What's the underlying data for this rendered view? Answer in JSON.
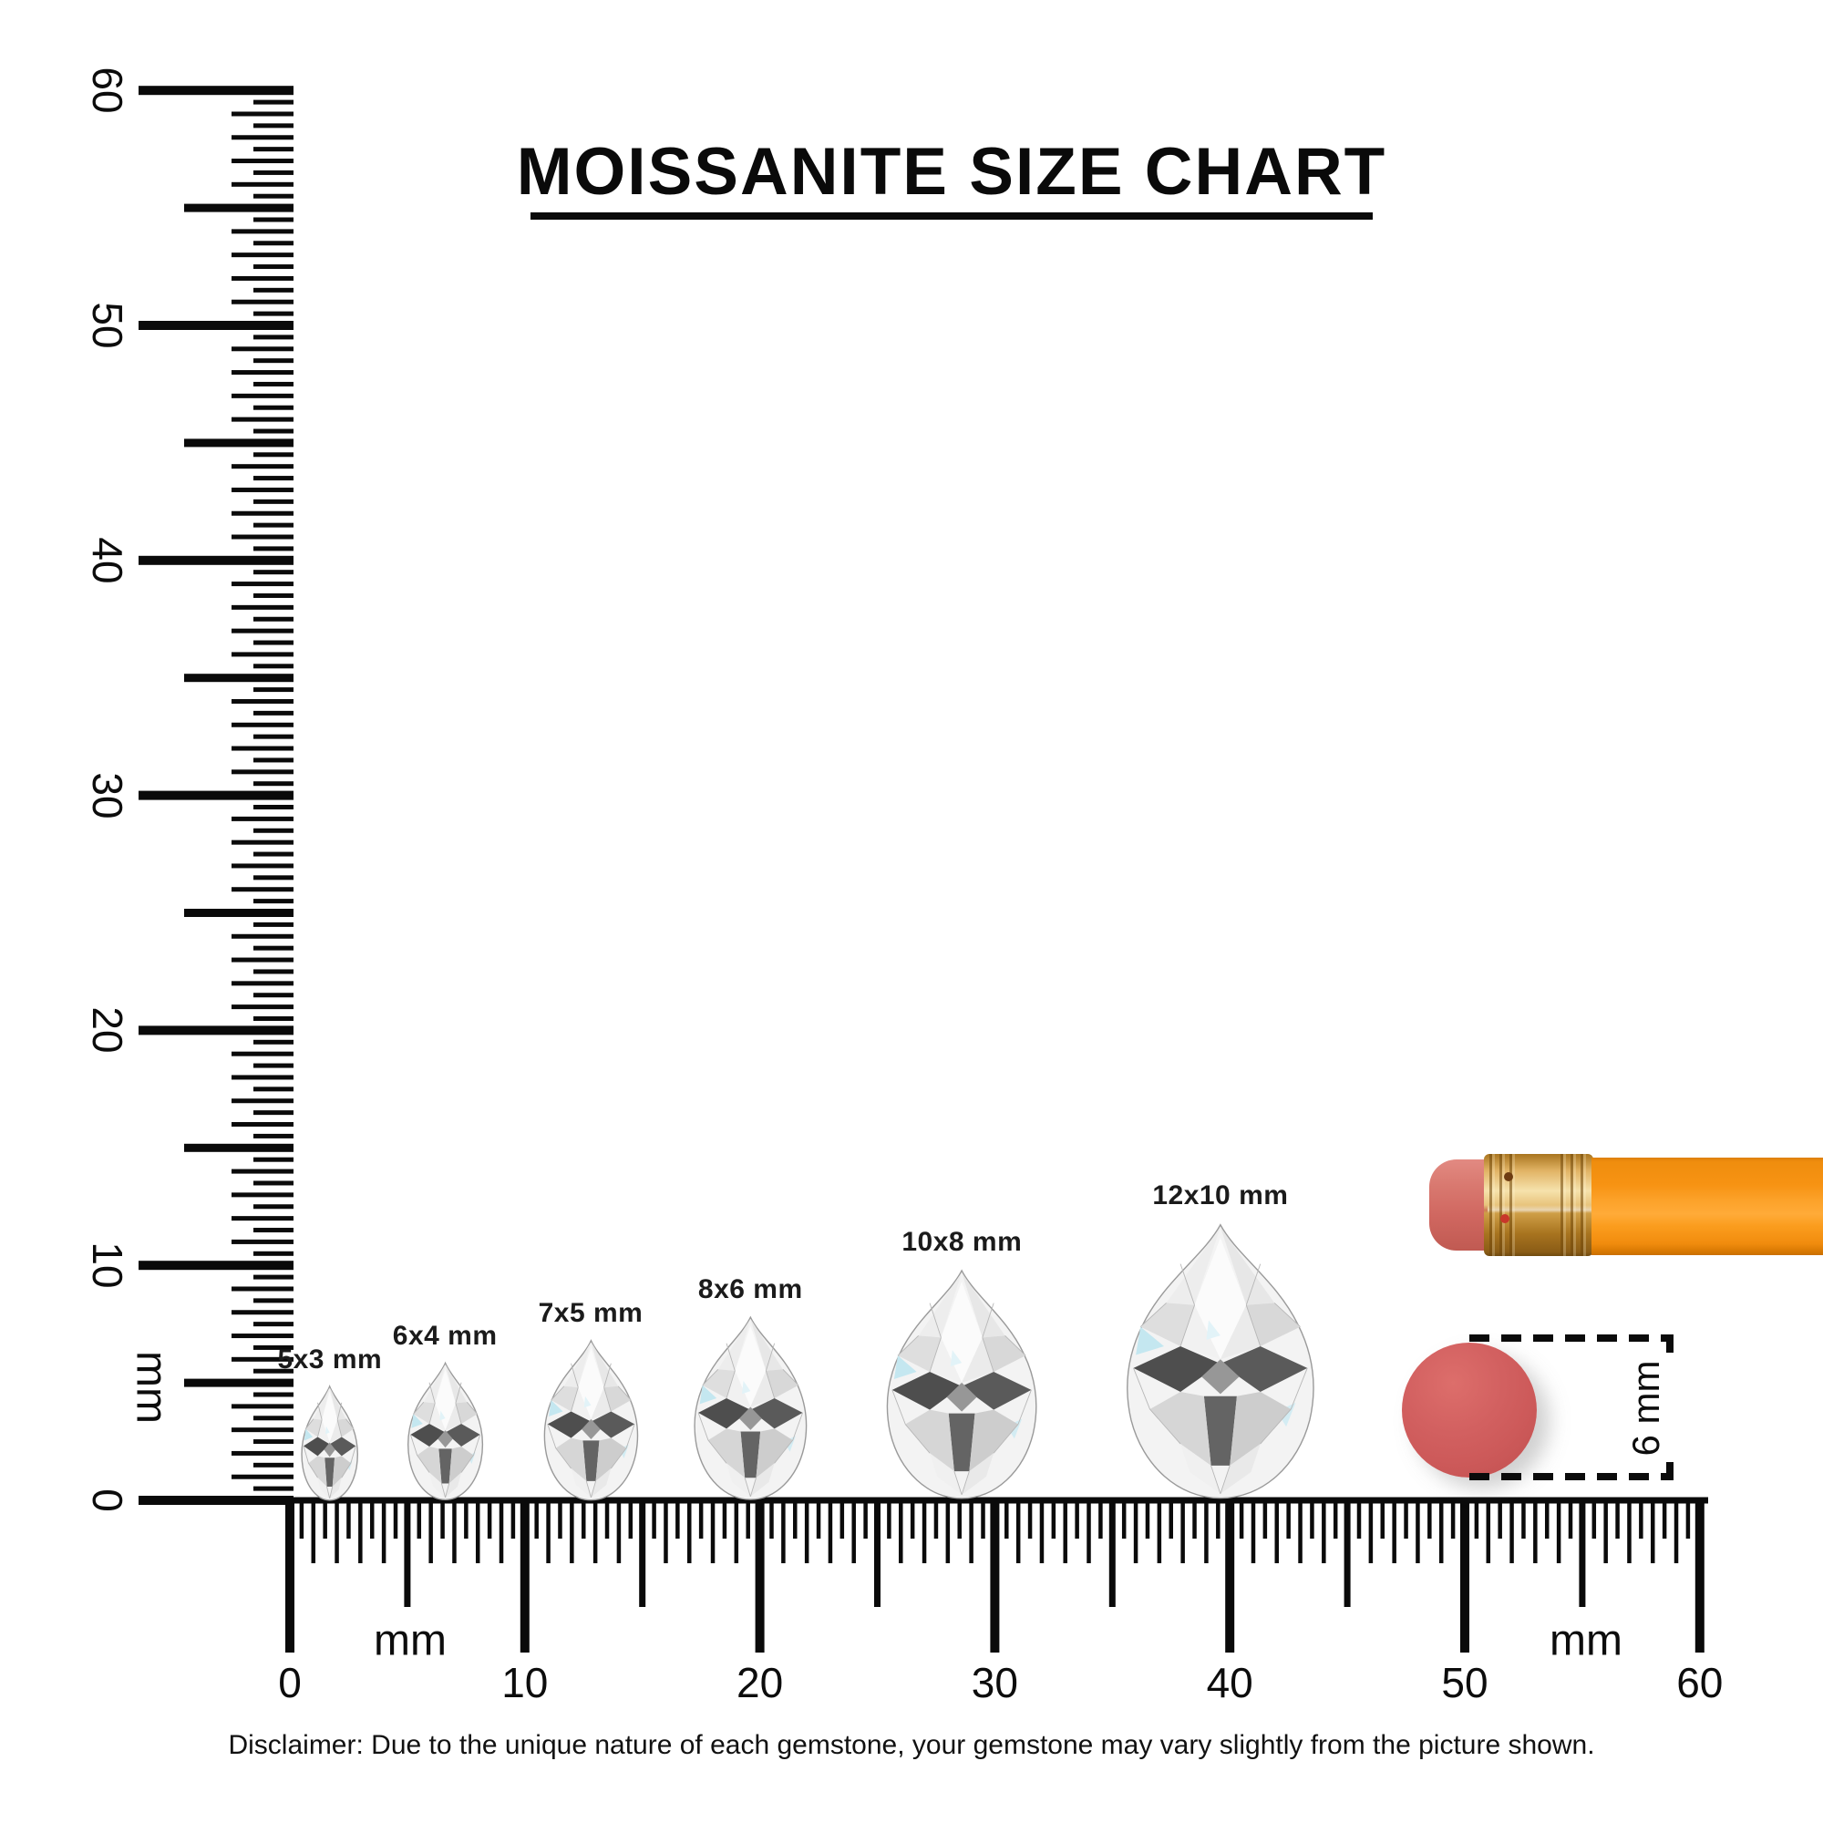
{
  "title": "MOISSANITE SIZE CHART",
  "rulers": {
    "unit_label": "mm",
    "vertical_labels": [
      "0",
      "10",
      "20",
      "30",
      "40",
      "50",
      "60"
    ],
    "horizontal_labels": [
      "0",
      "10",
      "20",
      "30",
      "40",
      "50",
      "60"
    ]
  },
  "gems": [
    {
      "label": "5x3 mm",
      "width_mm": 3,
      "height_mm": 5,
      "position_mm": 1.7
    },
    {
      "label": "6x4 mm",
      "width_mm": 4,
      "height_mm": 6,
      "position_mm": 6.6
    },
    {
      "label": "7x5 mm",
      "width_mm": 5,
      "height_mm": 7,
      "position_mm": 12.8
    },
    {
      "label": "8x6 mm",
      "width_mm": 6,
      "height_mm": 8,
      "position_mm": 19.6
    },
    {
      "label": "10x8 mm",
      "width_mm": 8,
      "height_mm": 10,
      "position_mm": 28.6
    },
    {
      "label": "12x10 mm",
      "width_mm": 10,
      "height_mm": 12,
      "position_mm": 39.6
    }
  ],
  "annotation": {
    "eraser_diameter_label": "6 mm"
  },
  "disclaimer": "Disclaimer: Due to the unique nature of each gemstone, your gemstone may vary slightly from the picture shown.",
  "colors": {
    "ink": "#0a0a0a",
    "eraser_disc": "#cd5a5a",
    "pencil_body_orange": "#f89a18",
    "pencil_eraser_pink": "#d8736c",
    "pencil_ferrule_gold": "#d9a253"
  }
}
